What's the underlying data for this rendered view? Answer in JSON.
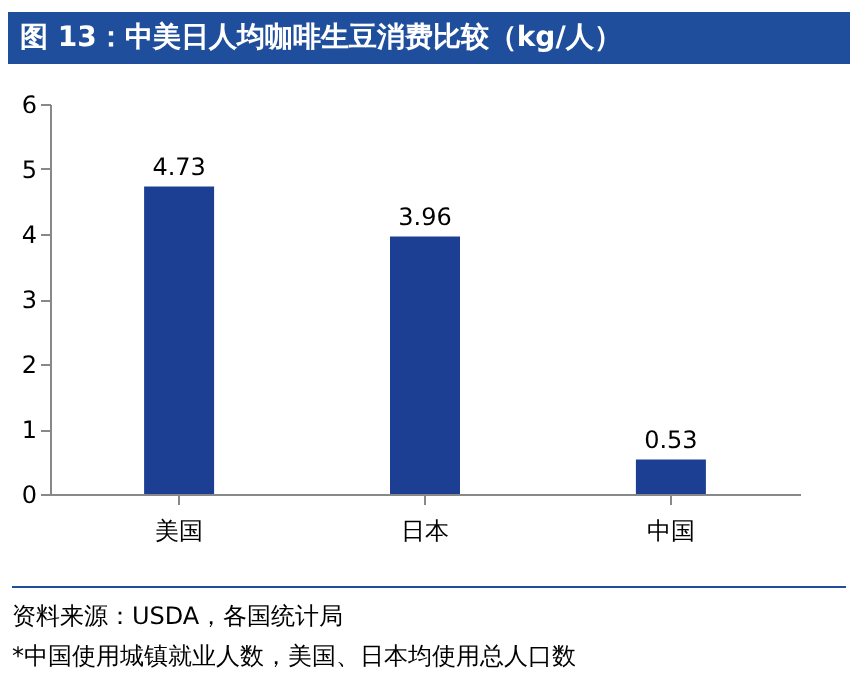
{
  "chart_data": {
    "type": "bar",
    "title": "图 13：中美日人均咖啡生豆消费比较（kg/人）",
    "categories": [
      "美国",
      "日本",
      "中国"
    ],
    "values": [
      4.73,
      3.96,
      0.53
    ],
    "color": "#1c3f94",
    "ylim": [
      0,
      6
    ],
    "yticks": [
      0,
      1,
      2,
      3,
      4,
      5,
      6
    ],
    "grid": false,
    "data_labels": true,
    "annotations": [
      "资料来源：USDA，各国统计局",
      "*中国使用城镇就业人数，美国、日本均使用总人口数"
    ]
  }
}
